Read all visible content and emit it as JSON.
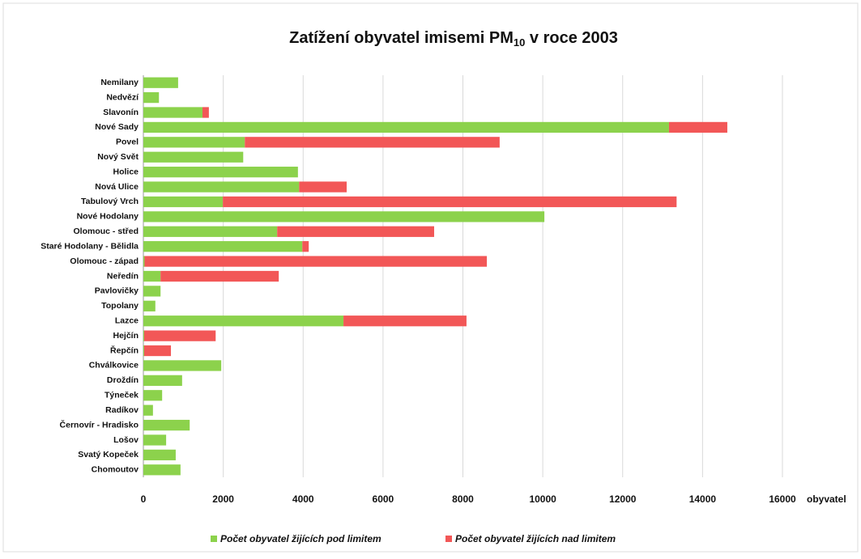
{
  "chart_data": {
    "type": "stacked-barh",
    "title": "Zatížení obyvatel imisemi PM",
    "title_subscript": "10",
    "title_suffix": " v roce 2003",
    "xlabel": "obyvatel",
    "categories": [
      "Nemilany",
      "Nedvězí",
      "Slavonín",
      "Nové Sady",
      "Povel",
      "Nový Svět",
      "Holice",
      "Nová Ulice",
      "Tabulový Vrch",
      "Nové Hodolany",
      "Olomouc - střed",
      "Staré Hodolany - Bělidla",
      "Olomouc - západ",
      "Neředín",
      "Pavlovičky",
      "Topolany",
      "Lazce",
      "Hejčín",
      "Řepčín",
      "Chválkovice",
      "Droždín",
      "Týneček",
      "Radíkov",
      "Černovír - Hradisko",
      "Lošov",
      "Svatý Kopeček",
      "Chomoutov"
    ],
    "series": [
      {
        "name": "Počet obyvatel žijících pod limitem",
        "color": "#8cd24c",
        "values": [
          870,
          390,
          1480,
          13160,
          2540,
          2500,
          3870,
          3900,
          1990,
          10040,
          3350,
          3980,
          30,
          430,
          430,
          300,
          5010,
          20,
          20,
          1950,
          970,
          470,
          240,
          1160,
          570,
          810,
          930
        ]
      },
      {
        "name": "Počet obyvatel žijících nad limitem",
        "color": "#f25757",
        "values": [
          0,
          0,
          160,
          1460,
          6380,
          0,
          0,
          1190,
          11360,
          0,
          3930,
          160,
          8570,
          2960,
          0,
          0,
          3080,
          1790,
          670,
          0,
          0,
          0,
          0,
          0,
          0,
          0,
          0
        ]
      }
    ],
    "xlim": [
      0,
      16000
    ],
    "xticks": [
      0,
      2000,
      4000,
      6000,
      8000,
      10000,
      12000,
      14000,
      16000
    ],
    "grid": true,
    "legend": "bottom"
  }
}
